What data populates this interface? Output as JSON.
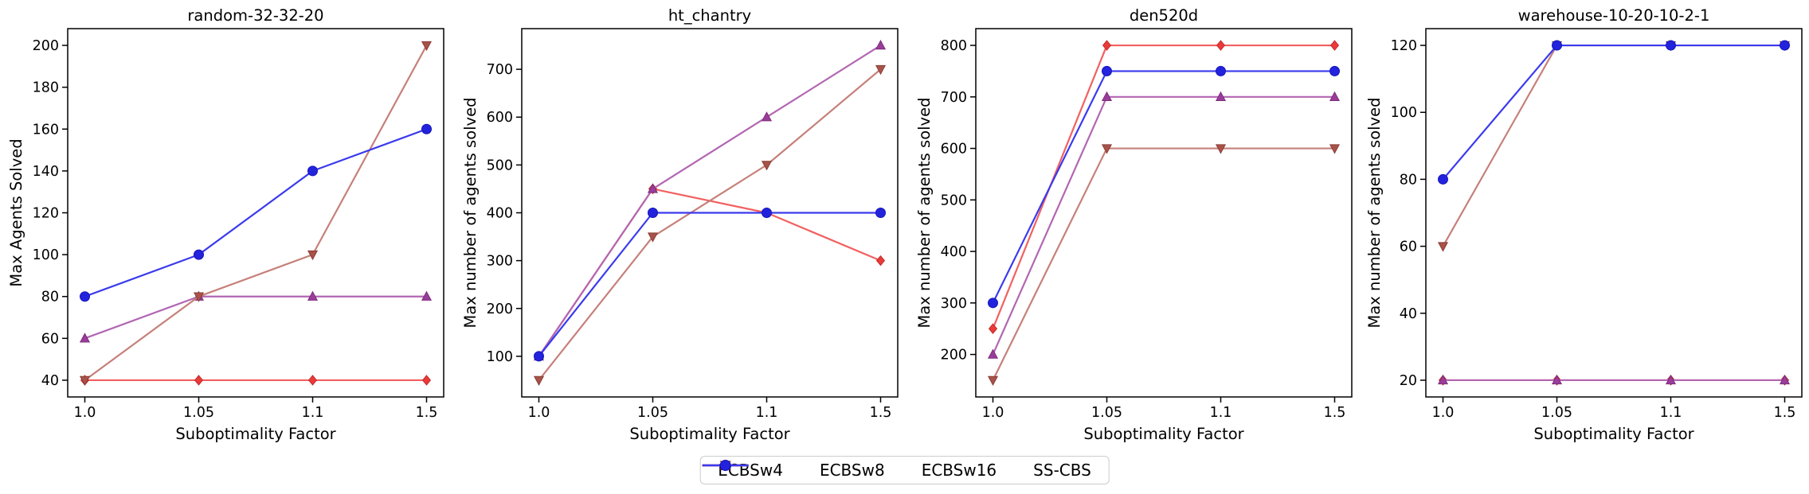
{
  "figure": {
    "background": "#ffffff",
    "axis_color": "#000000",
    "legend": {
      "position": "bottom-center",
      "entries": [
        {
          "label": "ECBSw4"
        },
        {
          "label": "ECBSw8"
        },
        {
          "label": "ECBSw16"
        },
        {
          "label": "SS-CBS"
        }
      ]
    },
    "series_styles": {
      "ECBSw4": {
        "marker": "diamond",
        "line_color": "#f26060",
        "marker_fill": "#ea3a3a",
        "marker_edge": "#c62b2b"
      },
      "ECBSw8": {
        "marker": "triangle-up",
        "line_color": "#b266b2",
        "marker_fill": "#9a3d9a",
        "marker_edge": "#7c2d7c"
      },
      "ECBSw16": {
        "marker": "triangle-down",
        "line_color": "#c6807a",
        "marker_fill": "#a8534a",
        "marker_edge": "#8a3d35"
      },
      "SS-CBS": {
        "marker": "circle",
        "line_color": "#3a3aee",
        "marker_fill": "#2323dd",
        "marker_edge": "#1515bb"
      }
    }
  },
  "chart_data": [
    {
      "type": "line",
      "title": "random-32-32-20",
      "xlabel": "Suboptimality Factor",
      "ylabel": "Max Agents Solved",
      "x_tick_labels": [
        "1.0",
        "1.05",
        "1.1",
        "1.5"
      ],
      "x_values": [
        1.0,
        1.05,
        1.1,
        1.5
      ],
      "x_spacing": "equal",
      "yticks": [
        40,
        60,
        80,
        100,
        120,
        140,
        160,
        180,
        200
      ],
      "ylim": [
        32,
        208
      ],
      "grid": false,
      "series": [
        {
          "name": "ECBSw4",
          "values": [
            40,
            40,
            40,
            40
          ]
        },
        {
          "name": "ECBSw8",
          "values": [
            60,
            80,
            80,
            80
          ]
        },
        {
          "name": "ECBSw16",
          "values": [
            40,
            80,
            100,
            200
          ]
        },
        {
          "name": "SS-CBS",
          "values": [
            80,
            100,
            140,
            160
          ]
        }
      ]
    },
    {
      "type": "line",
      "title": "ht_chantry",
      "xlabel": "Suboptimality Factor",
      "ylabel": "Max number of agents solved",
      "x_tick_labels": [
        "1.0",
        "1.05",
        "1.1",
        "1.5"
      ],
      "x_values": [
        1.0,
        1.05,
        1.1,
        1.5
      ],
      "x_spacing": "equal",
      "yticks": [
        100,
        200,
        300,
        400,
        500,
        600,
        700
      ],
      "ylim": [
        15,
        785
      ],
      "grid": false,
      "series": [
        {
          "name": "ECBSw4",
          "values": [
            100,
            450,
            400,
            300
          ]
        },
        {
          "name": "ECBSw8",
          "values": [
            100,
            450,
            600,
            750
          ]
        },
        {
          "name": "ECBSw16",
          "values": [
            50,
            350,
            500,
            700
          ]
        },
        {
          "name": "SS-CBS",
          "values": [
            100,
            400,
            400,
            400
          ]
        }
      ]
    },
    {
      "type": "line",
      "title": "den520d",
      "xlabel": "Suboptimality Factor",
      "ylabel": "Max number of agents solved",
      "x_tick_labels": [
        "1.0",
        "1.05",
        "1.1",
        "1.5"
      ],
      "x_values": [
        1.0,
        1.05,
        1.1,
        1.5
      ],
      "x_spacing": "equal",
      "yticks": [
        200,
        300,
        400,
        500,
        600,
        700,
        800
      ],
      "ylim": [
        117.5,
        832.5
      ],
      "grid": false,
      "series": [
        {
          "name": "ECBSw4",
          "values": [
            250,
            800,
            800,
            800
          ]
        },
        {
          "name": "ECBSw8",
          "values": [
            200,
            700,
            700,
            700
          ]
        },
        {
          "name": "ECBSw16",
          "values": [
            150,
            600,
            600,
            600
          ]
        },
        {
          "name": "SS-CBS",
          "values": [
            300,
            750,
            750,
            750
          ]
        }
      ]
    },
    {
      "type": "line",
      "title": "warehouse-10-20-10-2-1",
      "xlabel": "Suboptimality Factor",
      "ylabel": "Max number of agents solved",
      "x_tick_labels": [
        "1.0",
        "1.05",
        "1.1",
        "1.5"
      ],
      "x_values": [
        1.0,
        1.05,
        1.1,
        1.5
      ],
      "x_spacing": "equal",
      "yticks": [
        20,
        40,
        60,
        80,
        100,
        120
      ],
      "ylim": [
        15,
        125
      ],
      "grid": false,
      "series": [
        {
          "name": "ECBSw4",
          "values": [
            20,
            20,
            20,
            20
          ]
        },
        {
          "name": "ECBSw8",
          "values": [
            20,
            20,
            20,
            20
          ]
        },
        {
          "name": "ECBSw16",
          "values": [
            60,
            120,
            120,
            120
          ]
        },
        {
          "name": "SS-CBS",
          "values": [
            80,
            120,
            120,
            120
          ]
        }
      ]
    }
  ]
}
